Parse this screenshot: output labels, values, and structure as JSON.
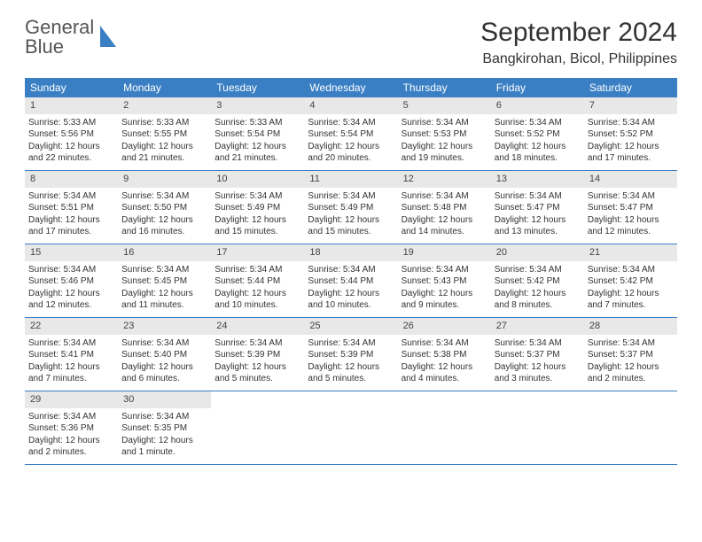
{
  "brand": {
    "word1": "General",
    "word2": "Blue",
    "accent_color": "#3a7fc4"
  },
  "title": "September 2024",
  "location": "Bangkirohan, Bicol, Philippines",
  "weekdays": [
    "Sunday",
    "Monday",
    "Tuesday",
    "Wednesday",
    "Thursday",
    "Friday",
    "Saturday"
  ],
  "colors": {
    "header_bg": "#3a7fc4",
    "daynum_bg": "#e8e8e8",
    "week_border": "#3a7fc4",
    "text": "#333333",
    "page_bg": "#ffffff"
  },
  "typography": {
    "title_fontsize": 30,
    "location_fontsize": 16,
    "weekday_fontsize": 12,
    "daynum_fontsize": 11,
    "body_fontsize": 10
  },
  "days": [
    {
      "num": "1",
      "sunrise": "5:33 AM",
      "sunset": "5:56 PM",
      "daylight": "12 hours and 22 minutes."
    },
    {
      "num": "2",
      "sunrise": "5:33 AM",
      "sunset": "5:55 PM",
      "daylight": "12 hours and 21 minutes."
    },
    {
      "num": "3",
      "sunrise": "5:33 AM",
      "sunset": "5:54 PM",
      "daylight": "12 hours and 21 minutes."
    },
    {
      "num": "4",
      "sunrise": "5:34 AM",
      "sunset": "5:54 PM",
      "daylight": "12 hours and 20 minutes."
    },
    {
      "num": "5",
      "sunrise": "5:34 AM",
      "sunset": "5:53 PM",
      "daylight": "12 hours and 19 minutes."
    },
    {
      "num": "6",
      "sunrise": "5:34 AM",
      "sunset": "5:52 PM",
      "daylight": "12 hours and 18 minutes."
    },
    {
      "num": "7",
      "sunrise": "5:34 AM",
      "sunset": "5:52 PM",
      "daylight": "12 hours and 17 minutes."
    },
    {
      "num": "8",
      "sunrise": "5:34 AM",
      "sunset": "5:51 PM",
      "daylight": "12 hours and 17 minutes."
    },
    {
      "num": "9",
      "sunrise": "5:34 AM",
      "sunset": "5:50 PM",
      "daylight": "12 hours and 16 minutes."
    },
    {
      "num": "10",
      "sunrise": "5:34 AM",
      "sunset": "5:49 PM",
      "daylight": "12 hours and 15 minutes."
    },
    {
      "num": "11",
      "sunrise": "5:34 AM",
      "sunset": "5:49 PM",
      "daylight": "12 hours and 15 minutes."
    },
    {
      "num": "12",
      "sunrise": "5:34 AM",
      "sunset": "5:48 PM",
      "daylight": "12 hours and 14 minutes."
    },
    {
      "num": "13",
      "sunrise": "5:34 AM",
      "sunset": "5:47 PM",
      "daylight": "12 hours and 13 minutes."
    },
    {
      "num": "14",
      "sunrise": "5:34 AM",
      "sunset": "5:47 PM",
      "daylight": "12 hours and 12 minutes."
    },
    {
      "num": "15",
      "sunrise": "5:34 AM",
      "sunset": "5:46 PM",
      "daylight": "12 hours and 12 minutes."
    },
    {
      "num": "16",
      "sunrise": "5:34 AM",
      "sunset": "5:45 PM",
      "daylight": "12 hours and 11 minutes."
    },
    {
      "num": "17",
      "sunrise": "5:34 AM",
      "sunset": "5:44 PM",
      "daylight": "12 hours and 10 minutes."
    },
    {
      "num": "18",
      "sunrise": "5:34 AM",
      "sunset": "5:44 PM",
      "daylight": "12 hours and 10 minutes."
    },
    {
      "num": "19",
      "sunrise": "5:34 AM",
      "sunset": "5:43 PM",
      "daylight": "12 hours and 9 minutes."
    },
    {
      "num": "20",
      "sunrise": "5:34 AM",
      "sunset": "5:42 PM",
      "daylight": "12 hours and 8 minutes."
    },
    {
      "num": "21",
      "sunrise": "5:34 AM",
      "sunset": "5:42 PM",
      "daylight": "12 hours and 7 minutes."
    },
    {
      "num": "22",
      "sunrise": "5:34 AM",
      "sunset": "5:41 PM",
      "daylight": "12 hours and 7 minutes."
    },
    {
      "num": "23",
      "sunrise": "5:34 AM",
      "sunset": "5:40 PM",
      "daylight": "12 hours and 6 minutes."
    },
    {
      "num": "24",
      "sunrise": "5:34 AM",
      "sunset": "5:39 PM",
      "daylight": "12 hours and 5 minutes."
    },
    {
      "num": "25",
      "sunrise": "5:34 AM",
      "sunset": "5:39 PM",
      "daylight": "12 hours and 5 minutes."
    },
    {
      "num": "26",
      "sunrise": "5:34 AM",
      "sunset": "5:38 PM",
      "daylight": "12 hours and 4 minutes."
    },
    {
      "num": "27",
      "sunrise": "5:34 AM",
      "sunset": "5:37 PM",
      "daylight": "12 hours and 3 minutes."
    },
    {
      "num": "28",
      "sunrise": "5:34 AM",
      "sunset": "5:37 PM",
      "daylight": "12 hours and 2 minutes."
    },
    {
      "num": "29",
      "sunrise": "5:34 AM",
      "sunset": "5:36 PM",
      "daylight": "12 hours and 2 minutes."
    },
    {
      "num": "30",
      "sunrise": "5:34 AM",
      "sunset": "5:35 PM",
      "daylight": "12 hours and 1 minute."
    }
  ],
  "labels": {
    "sunrise": "Sunrise:",
    "sunset": "Sunset:",
    "daylight": "Daylight:"
  },
  "grid": {
    "columns": 7,
    "rows": 5,
    "start_weekday": 0,
    "trailing_empty": 5
  }
}
